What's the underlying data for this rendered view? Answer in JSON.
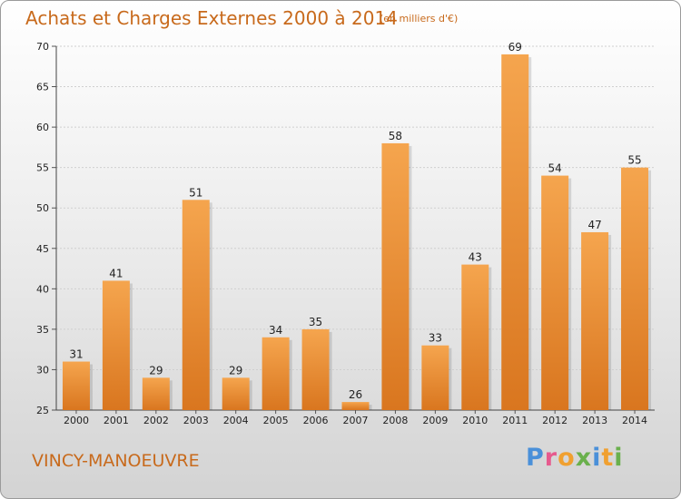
{
  "header": {
    "title": "Achats et Charges Externes 2000 à 2014",
    "subtitle": "(en milliers d'€)"
  },
  "footer": {
    "city": "VINCY-MANOEUVRE",
    "logo": [
      "P",
      "r",
      "o",
      "x",
      "i",
      "t",
      "i"
    ]
  },
  "colors": {
    "bar_light": "#f5a54e",
    "bar_dark": "#d9761f",
    "title": "#c86a1c"
  },
  "chart_data": {
    "type": "bar",
    "title": "Achats et Charges Externes 2000 à 2014",
    "subtitle": "(en milliers d'€)",
    "categories": [
      "2000",
      "2001",
      "2002",
      "2003",
      "2004",
      "2005",
      "2006",
      "2007",
      "2008",
      "2009",
      "2010",
      "2011",
      "2012",
      "2013",
      "2014"
    ],
    "values": [
      31,
      41,
      29,
      51,
      29,
      34,
      35,
      26,
      58,
      33,
      43,
      69,
      54,
      47,
      55
    ],
    "ylim": [
      25,
      70
    ],
    "yticks": [
      25,
      30,
      35,
      40,
      45,
      50,
      55,
      60,
      65,
      70
    ],
    "grid": true,
    "xlabel": "",
    "ylabel": ""
  }
}
